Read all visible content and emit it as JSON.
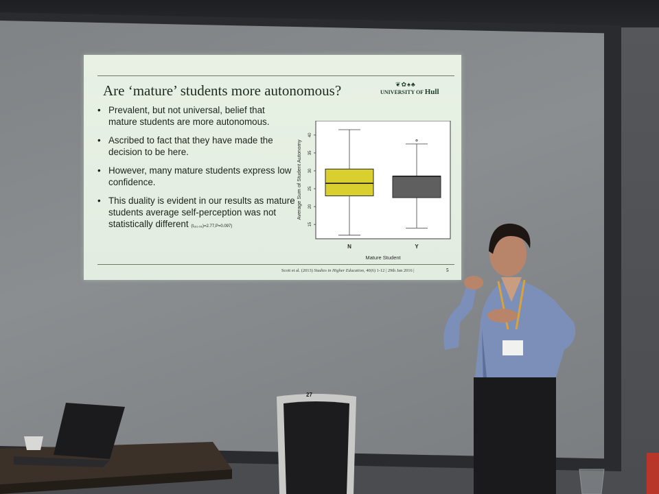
{
  "slide": {
    "title": "Are ‘mature’ students more autonomous?",
    "logo": {
      "text_prefix": "UNIVERSITY OF ",
      "text_main": "Hull",
      "marks": "❦✿♠♣"
    },
    "bullets": [
      {
        "text": "Prevalent, but not universal, belief that mature students are more autonomous.",
        "sub": ""
      },
      {
        "text": "Ascribed to fact that they have made the decision to be here.",
        "sub": ""
      },
      {
        "text": "However, many mature students express low confidence.",
        "sub": ""
      },
      {
        "text": "This duality is evident in our results as mature students average self-perception was not statistically different",
        "sub": "(t₁₆₁.₅₆)=2.77,P=0.097)"
      }
    ],
    "footer": {
      "citation": "Scott et al. (2013) ",
      "journal": "Studies in Higher Education",
      "rest": ", 40(6) 1-12 | 29th Jan 2016 |",
      "page": "5"
    }
  },
  "chair_number": "27",
  "chart_data": {
    "type": "box",
    "xlabel": "Mature Student",
    "ylabel": "Average Sum of Student Autonomy",
    "ylim": [
      11,
      44
    ],
    "yticks": [
      "15",
      "20",
      "25",
      "30",
      "35",
      "40"
    ],
    "categories": [
      "N",
      "Y"
    ],
    "boxes": [
      {
        "label": "N",
        "min": 12,
        "q1": 23,
        "median": 26.5,
        "q3": 30.5,
        "max": 41.5,
        "outliers": [],
        "color": "#d9cf2e"
      },
      {
        "label": "Y",
        "min": 14,
        "q1": 22.5,
        "median": 28.5,
        "q3": 28.5,
        "max": 37.5,
        "outliers": [
          38.5
        ],
        "color": "#5f5f5f"
      }
    ]
  },
  "colors": {
    "slide_bg": "#e6efe2",
    "screen": "#868a8d",
    "box_n": "#d9cf2e",
    "box_y": "#5f5f5f"
  }
}
